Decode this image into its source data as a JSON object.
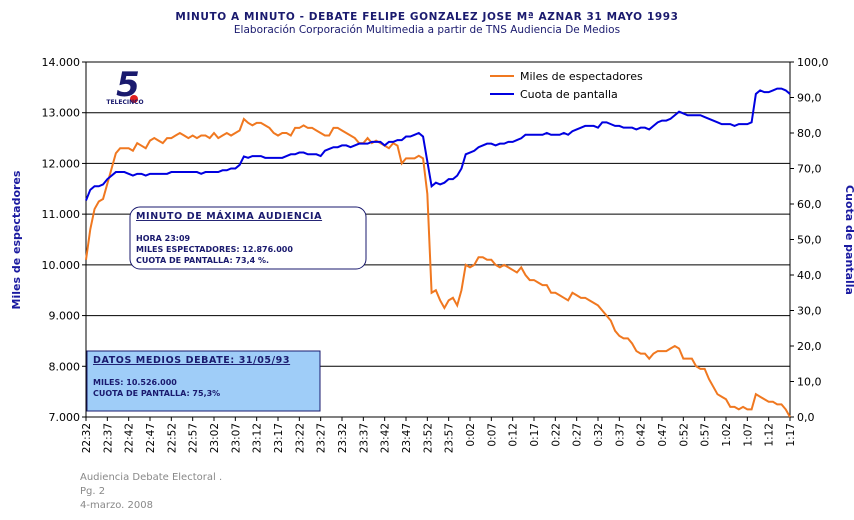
{
  "chart_data": {
    "type": "line",
    "title": "MINUTO A MINUTO  - DEBATE FELIPE GONZALEZ JOSE Mª AZNAR  31 MAYO 1993",
    "subtitle": "Elaboración Corporación Multimedia a partir de TNS Audiencia De Medios",
    "y_label": "Miles de espectadores",
    "y2_label": "Cuota de pantalla",
    "logo": {
      "mark": "5",
      "name": "TELECINCO"
    },
    "categories": [
      "22:32",
      null,
      null,
      null,
      null,
      "22:37",
      null,
      null,
      null,
      null,
      "22:42",
      null,
      null,
      null,
      null,
      "22:47",
      null,
      null,
      null,
      null,
      "22:52",
      null,
      null,
      null,
      null,
      "22:57",
      null,
      null,
      null,
      null,
      "23:02",
      null,
      null,
      null,
      null,
      "23:07",
      null,
      null,
      null,
      null,
      "23:12",
      null,
      null,
      null,
      null,
      "23:17",
      null,
      null,
      null,
      null,
      "23:22",
      null,
      null,
      null,
      null,
      "23:27",
      null,
      null,
      null,
      null,
      "23:32",
      null,
      null,
      null,
      null,
      "23:37",
      null,
      null,
      null,
      null,
      "23:42",
      null,
      null,
      null,
      null,
      "23:47",
      null,
      null,
      null,
      null,
      "23:52",
      null,
      null,
      null,
      null,
      "23:57",
      null,
      null,
      null,
      null,
      "0:02",
      null,
      null,
      null,
      null,
      "0:07",
      null,
      null,
      null,
      null,
      "0:12",
      null,
      null,
      null,
      null,
      "0:17",
      null,
      null,
      null,
      null,
      "0:22",
      null,
      null,
      null,
      null,
      "0:27",
      null,
      null,
      null,
      null,
      "0:32",
      null,
      null,
      null,
      null,
      "0:37",
      null,
      null,
      null,
      null,
      "0:42",
      null,
      null,
      null,
      null,
      "0:47",
      null,
      null,
      null,
      null,
      "0:52",
      null,
      null,
      null,
      null,
      "0:57",
      null,
      null,
      null,
      null,
      "1:02",
      null,
      null,
      null,
      null,
      "1:07",
      null,
      null,
      null,
      null,
      "1:12",
      null,
      null,
      null,
      null,
      "1:17"
    ],
    "series": [
      {
        "name": "Miles de espectadores",
        "color": "#f07820",
        "axis": "y",
        "values": [
          10100,
          10700,
          11100,
          11250,
          11300,
          11600,
          11900,
          12200,
          12300,
          12300,
          12300,
          12250,
          12400,
          12350,
          12300,
          12450,
          12500,
          12450,
          12400,
          12500,
          12500,
          12550,
          12600,
          12550,
          12500,
          12550,
          12500,
          12550,
          12550,
          12500,
          12600,
          12500,
          12550,
          12600,
          12550,
          12600,
          12650,
          12876,
          12800,
          12750,
          12800,
          12800,
          12750,
          12700,
          12600,
          12550,
          12600,
          12600,
          12550,
          12700,
          12700,
          12750,
          12700,
          12700,
          12650,
          12600,
          12550,
          12550,
          12700,
          12700,
          12650,
          12600,
          12550,
          12500,
          12400,
          12400,
          12500,
          12400,
          12450,
          12400,
          12350,
          12300,
          12400,
          12350,
          12000,
          12100,
          12100,
          12100,
          12150,
          12100,
          11400,
          9450,
          9500,
          9300,
          9150,
          9300,
          9350,
          9200,
          9500,
          10000,
          9950,
          10000,
          10150,
          10150,
          10100,
          10100,
          10000,
          9950,
          10000,
          9950,
          9900,
          9850,
          9950,
          9800,
          9700,
          9700,
          9650,
          9600,
          9600,
          9450,
          9450,
          9400,
          9350,
          9300,
          9450,
          9400,
          9350,
          9350,
          9300,
          9250,
          9200,
          9100,
          9000,
          8900,
          8700,
          8600,
          8550,
          8550,
          8450,
          8300,
          8250,
          8250,
          8150,
          8250,
          8300,
          8300,
          8300,
          8350,
          8400,
          8350,
          8150,
          8150,
          8150,
          8000,
          7950,
          7950,
          7750,
          7600,
          7450,
          7400,
          7350,
          7200,
          7200,
          7150,
          7200,
          7150,
          7150,
          7450,
          7400,
          7350,
          7300,
          7300,
          7250,
          7250,
          7150,
          7000
        ]
      },
      {
        "name": "Cuota de pantalla",
        "color": "#0000e0",
        "axis": "y2",
        "values": [
          61,
          64,
          65,
          65,
          65.5,
          67,
          68,
          69,
          69,
          69,
          68.5,
          68,
          68.5,
          68.5,
          68,
          68.5,
          68.5,
          68.5,
          68.5,
          68.5,
          69,
          69,
          69,
          69,
          69,
          69,
          69,
          68.5,
          69,
          69,
          69,
          69,
          69.5,
          69.5,
          70,
          70,
          71,
          73.4,
          73,
          73.5,
          73.5,
          73.5,
          73,
          73,
          73,
          73,
          73,
          73.5,
          74,
          74,
          74.5,
          74.5,
          74,
          74,
          74,
          73.5,
          75,
          75.5,
          76,
          76,
          76.5,
          76.5,
          76,
          76.5,
          77,
          77,
          77,
          77.5,
          77.5,
          77.5,
          76.5,
          77.5,
          77.5,
          78,
          78,
          79,
          79,
          79.5,
          80,
          79,
          72,
          65,
          66,
          65.5,
          66,
          67,
          67,
          68,
          70,
          74,
          74.5,
          75,
          76,
          76.5,
          77,
          77,
          76.5,
          77,
          77,
          77.5,
          77.5,
          78,
          78.5,
          79.5,
          79.5,
          79.5,
          79.5,
          79.5,
          80,
          79.5,
          79.5,
          79.5,
          80,
          79.5,
          80.5,
          81,
          81.5,
          82,
          82,
          82,
          81.5,
          83,
          83,
          82.5,
          82,
          82,
          81.5,
          81.5,
          81.5,
          81,
          81.5,
          81.5,
          81,
          82,
          83,
          83.5,
          83.5,
          84,
          85,
          86,
          85.5,
          85,
          85,
          85,
          85,
          84.5,
          84,
          83.5,
          83,
          82.5,
          82.5,
          82.5,
          82,
          82.5,
          82.5,
          82.5,
          83,
          91,
          92,
          91.5,
          91.5,
          92,
          92.5,
          92.5,
          92,
          91
        ]
      }
    ],
    "ylim": [
      7000,
      14000
    ],
    "yticks": [
      {
        "value": 7000,
        "label": "7.000"
      },
      {
        "value": 8000,
        "label": "8.000"
      },
      {
        "value": 9000,
        "label": "9.000"
      },
      {
        "value": 10000,
        "label": "10.000"
      },
      {
        "value": 11000,
        "label": "11.000"
      },
      {
        "value": 12000,
        "label": "12.000"
      },
      {
        "value": 13000,
        "label": "13.000"
      },
      {
        "value": 14000,
        "label": "14.000"
      }
    ],
    "y2lim": [
      0,
      100
    ],
    "y2ticks": [
      {
        "value": 0,
        "label": "0,0"
      },
      {
        "value": 10,
        "label": "10,0"
      },
      {
        "value": 20,
        "label": "20,0"
      },
      {
        "value": 30,
        "label": "30,0"
      },
      {
        "value": 40,
        "label": "40,0"
      },
      {
        "value": 50,
        "label": "50,0"
      },
      {
        "value": 60,
        "label": "60,0"
      },
      {
        "value": 70,
        "label": "70,0"
      },
      {
        "value": 80,
        "label": "80,0"
      },
      {
        "value": 90,
        "label": "90,0"
      },
      {
        "value": 100,
        "label": "100,0"
      }
    ],
    "grid": true,
    "legend": "top-right",
    "annotations": [
      {
        "title": "MINUTO DE MÁXIMA AUDIENCIA",
        "lines": [
          "HORA 23:09",
          "MILES ESPECTADORES: 12.876.000",
          "CUOTA DE PANTALLA: 73,4 %."
        ]
      },
      {
        "title": "DATOS MEDIOS DEBATE: 31/05/93",
        "lines": [
          "MILES: 10.526.000",
          "CUOTA DE PANTALLA: 75,3%"
        ]
      }
    ]
  },
  "footer": [
    "Audiencia Debate Electoral .",
    "Pg. 2",
    "4-marzo. 2008"
  ]
}
